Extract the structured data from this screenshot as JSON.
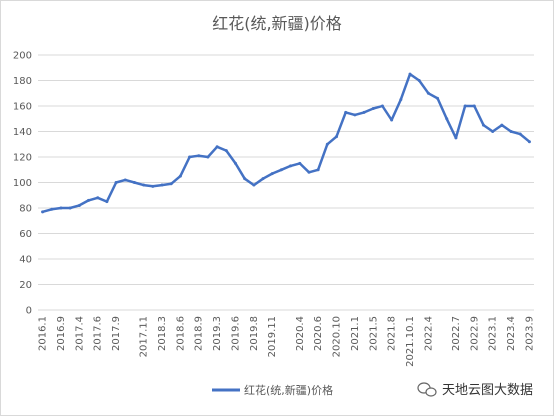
{
  "chart_data": {
    "type": "line",
    "title": "红花(统,新疆)价格",
    "xlabel": "",
    "ylabel": "",
    "ylim": [
      0,
      200
    ],
    "yticks": [
      0,
      20,
      40,
      60,
      80,
      100,
      120,
      140,
      160,
      180,
      200
    ],
    "grid": true,
    "legend_position": "bottom",
    "series": [
      {
        "name": "红花(统,新疆)价格",
        "color": "#4472C4",
        "values": [
          77,
          79,
          80,
          80,
          82,
          86,
          88,
          85,
          100,
          102,
          100,
          98,
          97,
          98,
          99,
          105,
          120,
          121,
          120,
          128,
          125,
          115,
          103,
          98,
          103,
          107,
          110,
          113,
          115,
          108,
          110,
          130,
          136,
          155,
          153,
          155,
          158,
          160,
          149,
          165,
          185,
          180,
          170,
          166,
          150,
          135,
          160,
          160,
          145,
          140,
          145,
          140,
          138,
          132
        ]
      }
    ],
    "x_tick_labels": [
      "2016.1",
      "2016.9",
      "2017.4",
      "2017.6",
      "2017.9",
      "2017.11",
      "2018.3",
      "2018.6",
      "2018.9",
      "2019.3",
      "2019.6",
      "2019.8",
      "2019.11",
      "2020.4",
      "2020.6",
      "2020.10",
      "2021.1",
      "2021.5",
      "2021.8",
      "2021.10.1",
      "2022.4",
      "2022.7",
      "2022.9",
      "2023.1",
      "2023.4",
      "2023.9"
    ]
  },
  "watermark": {
    "text": "天地云图大数据",
    "icon": "wechat-icon"
  }
}
